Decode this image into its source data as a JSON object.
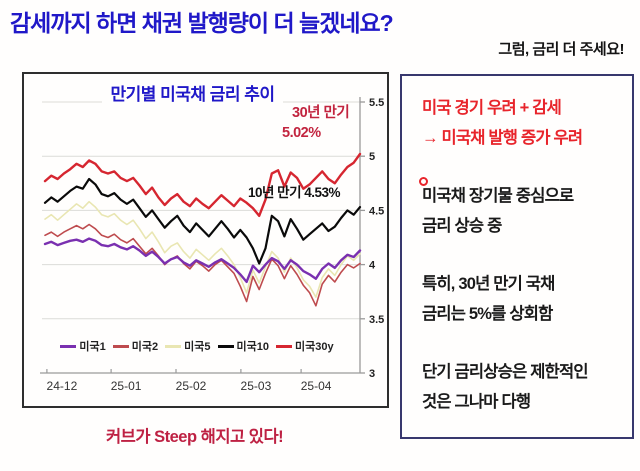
{
  "header": {
    "title": "감세까지 하면 채권 발행량이 더 늘겠네요?",
    "title_color": "#2018C8",
    "subtitle": "그럼, 금리 더 주세요!"
  },
  "chart_data": {
    "type": "line",
    "title": "만기별 미국채 금리 추이",
    "title_color": "#2018C8",
    "xlabel": "",
    "ylabel": "",
    "ylim": [
      3,
      5.5
    ],
    "y_ticks": [
      3,
      3.5,
      4,
      4.5,
      5,
      5.5
    ],
    "y_axis_side": "right",
    "grid": true,
    "legend_position": "bottom-inside",
    "x_tick_labels": [
      "24-12",
      "25-01",
      "25-02",
      "25-03",
      "25-04"
    ],
    "x_tick_positions_pct": [
      0.6,
      21,
      41.6,
      62.2,
      81.3
    ],
    "series": [
      {
        "name": "미국1",
        "color": "#7A30B0",
        "width": 2.4,
        "values": [
          4.19,
          4.21,
          4.18,
          4.2,
          4.22,
          4.23,
          4.21,
          4.24,
          4.22,
          4.18,
          4.17,
          4.19,
          4.16,
          4.14,
          4.17,
          4.13,
          4.08,
          4.12,
          4.07,
          4.01,
          4.05,
          4.07,
          4.02,
          3.99,
          4.04,
          4.01,
          3.98,
          4.02,
          4.05,
          4.01,
          3.97,
          3.91,
          3.84,
          3.99,
          3.93,
          4.0,
          4.06,
          4.03,
          3.96,
          4.04,
          4.0,
          3.94,
          3.91,
          3.87,
          3.96,
          4.01,
          3.97,
          4.04,
          4.09,
          4.07,
          4.13
        ]
      },
      {
        "name": "미국2",
        "color": "#BE4B4E",
        "width": 1.6,
        "values": [
          4.27,
          4.3,
          4.26,
          4.3,
          4.33,
          4.36,
          4.33,
          4.37,
          4.33,
          4.27,
          4.25,
          4.28,
          4.23,
          4.2,
          4.24,
          4.17,
          4.1,
          4.15,
          4.08,
          4.0,
          4.05,
          4.08,
          4.01,
          3.96,
          4.03,
          3.99,
          3.94,
          4.0,
          4.04,
          3.98,
          3.92,
          3.8,
          3.66,
          3.89,
          3.77,
          3.92,
          4.05,
          3.99,
          3.87,
          3.99,
          3.91,
          3.81,
          3.74,
          3.62,
          3.82,
          3.9,
          3.84,
          3.93,
          4.0,
          3.97,
          4.01
        ]
      },
      {
        "name": "미국5",
        "color": "#E9E6B2",
        "width": 1.6,
        "values": [
          4.42,
          4.46,
          4.41,
          4.46,
          4.51,
          4.56,
          4.52,
          4.58,
          4.53,
          4.46,
          4.44,
          4.47,
          4.41,
          4.37,
          4.41,
          4.33,
          4.24,
          4.3,
          4.21,
          4.11,
          4.17,
          4.2,
          4.12,
          4.06,
          4.14,
          4.09,
          4.04,
          4.1,
          4.15,
          4.08,
          4.0,
          3.88,
          3.74,
          3.95,
          3.83,
          3.98,
          4.12,
          4.06,
          3.93,
          4.06,
          3.97,
          3.86,
          3.8,
          3.7,
          3.88,
          3.96,
          3.9,
          4.0,
          4.08,
          4.04,
          4.1
        ]
      },
      {
        "name": "미국10",
        "color": "#0a0a0a",
        "width": 2.2,
        "values": [
          4.57,
          4.62,
          4.58,
          4.63,
          4.68,
          4.72,
          4.7,
          4.79,
          4.74,
          4.65,
          4.63,
          4.66,
          4.6,
          4.56,
          4.6,
          4.52,
          4.44,
          4.5,
          4.42,
          4.34,
          4.4,
          4.45,
          4.36,
          4.3,
          4.38,
          4.32,
          4.26,
          4.33,
          4.4,
          4.33,
          4.25,
          4.32,
          4.25,
          4.15,
          4.01,
          4.15,
          4.45,
          4.4,
          4.26,
          4.42,
          4.33,
          4.23,
          4.28,
          4.33,
          4.38,
          4.31,
          4.35,
          4.43,
          4.5,
          4.46,
          4.53
        ]
      },
      {
        "name": "미국30y",
        "color": "#D62630",
        "width": 2.4,
        "values": [
          4.77,
          4.82,
          4.79,
          4.84,
          4.88,
          4.93,
          4.9,
          4.96,
          4.93,
          4.86,
          4.84,
          4.86,
          4.8,
          4.77,
          4.8,
          4.73,
          4.65,
          4.71,
          4.62,
          4.55,
          4.61,
          4.65,
          4.58,
          4.54,
          4.61,
          4.56,
          4.52,
          4.58,
          4.64,
          4.59,
          4.54,
          4.61,
          4.57,
          4.52,
          4.45,
          4.6,
          4.84,
          4.87,
          4.72,
          4.85,
          4.8,
          4.7,
          4.74,
          4.8,
          4.86,
          4.79,
          4.75,
          4.83,
          4.9,
          4.94,
          5.02
        ]
      }
    ],
    "annotations": [
      {
        "lines": [
          "30년 만기",
          "5.02%"
        ],
        "color": "#C2243F"
      },
      {
        "lines": [
          "10년 만기 4.53%"
        ],
        "color": "#111111"
      }
    ]
  },
  "footer": {
    "note": "커브가 Steep 해지고 있다!",
    "color": "#BE2143"
  },
  "side_panel": {
    "border_color": "#38386E",
    "accent_red": "#E8242B",
    "paragraphs": [
      {
        "lines": [
          "미국 경기 우려 + 감세",
          "→ 미국채 발행 증가 우려"
        ],
        "color": "red",
        "bullet": false
      },
      {
        "lines": [
          "미국채 장기물 중심으로",
          "금리 상승 중"
        ],
        "color": "black",
        "bullet": true
      },
      {
        "lines": [
          "특히, 30년 만기 국채",
          "금리는 5%를 상회함"
        ],
        "color": "black",
        "bullet": false
      },
      {
        "lines": [
          "단기 금리상승은 제한적인",
          "것은 그나마 다행"
        ],
        "color": "black",
        "bullet": false
      }
    ]
  }
}
